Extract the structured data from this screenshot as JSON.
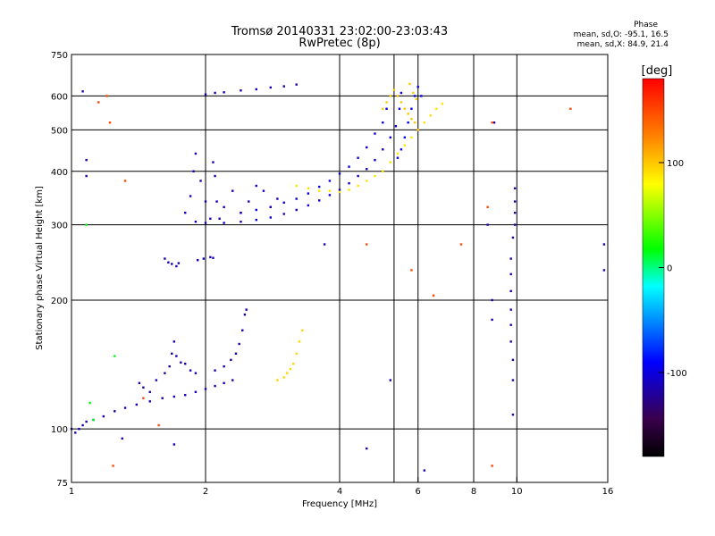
{
  "chart_data": {
    "type": "scatter",
    "title": "Tromsø 20140331 23:02:00-23:03:43",
    "subtitle": "RwPretec (8p)",
    "xlabel": "Frequency [MHz]",
    "ylabel": "Stationary phase Virtual Height [km]",
    "x_scale": "log",
    "y_scale": "log",
    "xlim": [
      1,
      16
    ],
    "ylim": [
      75,
      750
    ],
    "x_ticks": [
      1,
      2,
      4,
      6,
      8,
      10,
      16
    ],
    "y_ticks": [
      75,
      100,
      200,
      300,
      400,
      500,
      600,
      750
    ],
    "x_extra_gridlines": [
      5.3
    ],
    "grid": true,
    "phase_stats": {
      "title": "Phase",
      "o_mode": "mean, sd,O: -95.1, 16.5",
      "x_mode": "mean, sd,X:  84.9, 21.4"
    },
    "colorbar": {
      "label": "[deg]",
      "range": [
        -180,
        180
      ],
      "ticks": [
        100,
        0,
        -100
      ],
      "colormap": "rainbow-black-to-red"
    },
    "series": [
      {
        "phase": -110,
        "points": [
          [
            1.0,
            100
          ],
          [
            1.02,
            98
          ],
          [
            1.04,
            100
          ],
          [
            1.06,
            102
          ],
          [
            1.08,
            104
          ],
          [
            1.12,
            105
          ],
          [
            1.18,
            107
          ],
          [
            1.25,
            110
          ],
          [
            1.32,
            112
          ],
          [
            1.4,
            114
          ],
          [
            1.5,
            116
          ],
          [
            1.6,
            118
          ],
          [
            1.7,
            119
          ],
          [
            1.8,
            120
          ],
          [
            1.9,
            122
          ],
          [
            2.0,
            124
          ],
          [
            2.1,
            126
          ],
          [
            2.2,
            128
          ],
          [
            2.3,
            130
          ]
        ]
      },
      {
        "phase": -115,
        "points": [
          [
            1.42,
            128
          ],
          [
            1.45,
            125
          ],
          [
            1.5,
            122
          ],
          [
            1.55,
            130
          ],
          [
            1.62,
            135
          ],
          [
            1.66,
            140
          ],
          [
            1.68,
            150
          ],
          [
            1.7,
            160
          ],
          [
            1.72,
            148
          ],
          [
            1.76,
            143
          ],
          [
            1.8,
            142
          ],
          [
            1.85,
            137
          ],
          [
            1.9,
            135
          ],
          [
            2.1,
            137
          ],
          [
            2.2,
            140
          ],
          [
            2.28,
            145
          ],
          [
            2.34,
            150
          ],
          [
            2.38,
            158
          ],
          [
            2.42,
            170
          ],
          [
            2.45,
            185
          ],
          [
            2.47,
            190
          ]
        ]
      },
      {
        "phase": -110,
        "points": [
          [
            1.62,
            250
          ],
          [
            1.65,
            245
          ],
          [
            1.68,
            243
          ],
          [
            1.72,
            240
          ],
          [
            1.74,
            244
          ],
          [
            1.92,
            248
          ],
          [
            1.98,
            250
          ],
          [
            2.05,
            252
          ],
          [
            2.08,
            251
          ]
        ]
      },
      {
        "phase": -105,
        "points": [
          [
            1.9,
            305
          ],
          [
            2.0,
            303
          ],
          [
            2.2,
            303
          ],
          [
            2.4,
            305
          ],
          [
            2.6,
            308
          ],
          [
            2.8,
            312
          ],
          [
            3.0,
            318
          ],
          [
            3.2,
            325
          ],
          [
            3.4,
            333
          ],
          [
            3.6,
            342
          ],
          [
            3.8,
            352
          ],
          [
            4.0,
            362
          ],
          [
            4.2,
            375
          ],
          [
            4.4,
            390
          ],
          [
            4.6,
            405
          ],
          [
            4.8,
            425
          ],
          [
            5.0,
            450
          ],
          [
            5.2,
            480
          ],
          [
            5.35,
            510
          ],
          [
            5.45,
            560
          ],
          [
            5.5,
            610
          ]
        ]
      },
      {
        "phase": -100,
        "points": [
          [
            2.4,
            320
          ],
          [
            2.6,
            325
          ],
          [
            2.8,
            330
          ],
          [
            3.0,
            338
          ],
          [
            3.2,
            345
          ],
          [
            3.4,
            355
          ],
          [
            3.6,
            368
          ],
          [
            3.8,
            380
          ],
          [
            4.0,
            395
          ],
          [
            4.2,
            410
          ],
          [
            4.4,
            430
          ],
          [
            4.6,
            455
          ],
          [
            4.8,
            490
          ],
          [
            5.0,
            520
          ],
          [
            5.1,
            560
          ]
        ]
      },
      {
        "phase": -110,
        "points": [
          [
            1.8,
            320
          ],
          [
            1.85,
            350
          ],
          [
            1.88,
            400
          ],
          [
            1.9,
            440
          ],
          [
            1.95,
            380
          ],
          [
            2.0,
            340
          ],
          [
            2.05,
            310
          ],
          [
            2.08,
            420
          ],
          [
            2.1,
            390
          ],
          [
            2.12,
            340
          ],
          [
            2.15,
            310
          ],
          [
            2.2,
            330
          ],
          [
            2.3,
            360
          ],
          [
            2.4,
            320
          ],
          [
            2.5,
            340
          ],
          [
            2.6,
            370
          ],
          [
            2.7,
            360
          ],
          [
            2.8,
            330
          ],
          [
            2.9,
            345
          ]
        ]
      },
      {
        "phase": -110,
        "points": [
          [
            2.0,
            605
          ],
          [
            2.1,
            610
          ],
          [
            2.2,
            612
          ],
          [
            2.4,
            618
          ],
          [
            2.6,
            622
          ],
          [
            2.8,
            628
          ],
          [
            3.0,
            632
          ],
          [
            3.2,
            638
          ]
        ]
      },
      {
        "phase": 90,
        "points": [
          [
            3.2,
            370
          ],
          [
            3.4,
            365
          ],
          [
            3.6,
            360
          ],
          [
            3.8,
            360
          ],
          [
            4.0,
            358
          ],
          [
            4.2,
            362
          ],
          [
            4.4,
            370
          ],
          [
            4.6,
            380
          ],
          [
            4.8,
            390
          ],
          [
            5.0,
            400
          ],
          [
            5.2,
            420
          ],
          [
            5.4,
            440
          ],
          [
            5.6,
            460
          ],
          [
            5.8,
            480
          ],
          [
            6.0,
            500
          ],
          [
            6.2,
            520
          ],
          [
            6.4,
            540
          ],
          [
            6.6,
            560
          ],
          [
            6.8,
            575
          ]
        ]
      },
      {
        "phase": 100,
        "points": [
          [
            5.0,
            560
          ],
          [
            5.1,
            580
          ],
          [
            5.2,
            600
          ],
          [
            5.3,
            620
          ],
          [
            5.4,
            600
          ],
          [
            5.5,
            580
          ],
          [
            5.6,
            560
          ],
          [
            5.7,
            545
          ],
          [
            5.8,
            530
          ],
          [
            5.9,
            520
          ],
          [
            6.0,
            500
          ],
          [
            5.75,
            640
          ],
          [
            5.85,
            610
          ],
          [
            5.95,
            590
          ]
        ]
      },
      {
        "phase": 95,
        "points": [
          [
            2.9,
            130
          ],
          [
            3.0,
            132
          ],
          [
            3.05,
            135
          ],
          [
            3.1,
            138
          ],
          [
            3.15,
            142
          ],
          [
            3.2,
            150
          ],
          [
            3.25,
            160
          ],
          [
            3.3,
            170
          ]
        ]
      },
      {
        "phase": -95,
        "points": [
          [
            5.7,
            520
          ],
          [
            5.8,
            560
          ],
          [
            5.9,
            600
          ],
          [
            6.0,
            630
          ],
          [
            5.6,
            480
          ],
          [
            5.5,
            450
          ],
          [
            5.4,
            430
          ],
          [
            6.1,
            600
          ]
        ]
      },
      {
        "phase": 150,
        "points": [
          [
            1.2,
            600
          ],
          [
            1.22,
            520
          ],
          [
            1.32,
            380
          ],
          [
            8.6,
            330
          ],
          [
            8.8,
            520
          ],
          [
            13.2,
            560
          ],
          [
            7.5,
            270
          ],
          [
            4.6,
            270
          ],
          [
            5.8,
            235
          ],
          [
            6.5,
            205
          ],
          [
            1.15,
            580
          ],
          [
            1.45,
            118
          ],
          [
            1.57,
            102
          ],
          [
            1.24,
            82
          ],
          [
            8.8,
            82
          ]
        ]
      },
      {
        "phase": -115,
        "points": [
          [
            1.06,
            615
          ],
          [
            1.08,
            390
          ],
          [
            1.08,
            425
          ],
          [
            3.7,
            270
          ],
          [
            5.2,
            130
          ],
          [
            9.8,
            108
          ],
          [
            9.8,
            130
          ],
          [
            9.8,
            145
          ],
          [
            9.7,
            160
          ],
          [
            9.7,
            175
          ],
          [
            9.7,
            190
          ],
          [
            9.7,
            210
          ],
          [
            9.7,
            230
          ],
          [
            9.7,
            250
          ],
          [
            9.8,
            280
          ],
          [
            9.9,
            300
          ],
          [
            9.9,
            320
          ],
          [
            9.9,
            340
          ],
          [
            9.9,
            365
          ],
          [
            8.8,
            200
          ],
          [
            8.8,
            180
          ],
          [
            8.6,
            300
          ],
          [
            8.9,
            520
          ],
          [
            15.7,
            270
          ],
          [
            15.7,
            235
          ],
          [
            4.6,
            90
          ],
          [
            6.2,
            80
          ],
          [
            1.3,
            95
          ],
          [
            1.7,
            92
          ]
        ]
      },
      {
        "phase": 15,
        "points": [
          [
            1.1,
            115
          ],
          [
            1.12,
            105
          ],
          [
            1.08,
            300
          ],
          [
            1.25,
            148
          ]
        ]
      }
    ]
  }
}
